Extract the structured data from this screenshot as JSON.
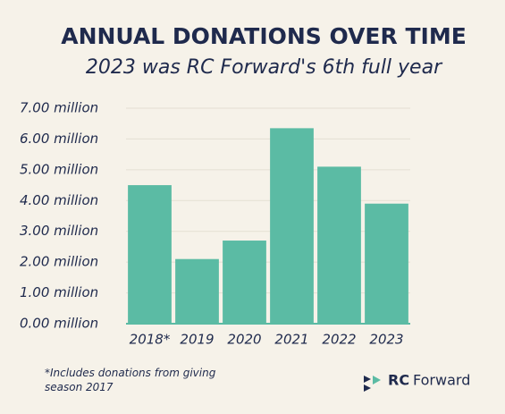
{
  "chart_data": {
    "type": "bar",
    "title": "ANNUAL DONATIONS OVER TIME",
    "subtitle": "2023 was RC Forward's 6th full year",
    "categories": [
      "2018*",
      "2019",
      "2020",
      "2021",
      "2022",
      "2023"
    ],
    "values": [
      4.5,
      2.1,
      2.7,
      6.35,
      5.1,
      3.9
    ],
    "color": "#5bbba4",
    "ylim": [
      0,
      7
    ],
    "yticks": [
      {
        "value": 0,
        "label": "0.00 million"
      },
      {
        "value": 1,
        "label": "1.00 million"
      },
      {
        "value": 2,
        "label": "2.00 million"
      },
      {
        "value": 3,
        "label": "3.00 million"
      },
      {
        "value": 4,
        "label": "4.00 million"
      },
      {
        "value": 5,
        "label": "5.00 million"
      },
      {
        "value": 6,
        "label": "6.00 million"
      },
      {
        "value": 7,
        "label": "7.00 million"
      }
    ],
    "grid": true,
    "note": "*Includes donations from giving season 2017"
  },
  "logo": {
    "bold": "RC",
    "text": "Forward"
  }
}
